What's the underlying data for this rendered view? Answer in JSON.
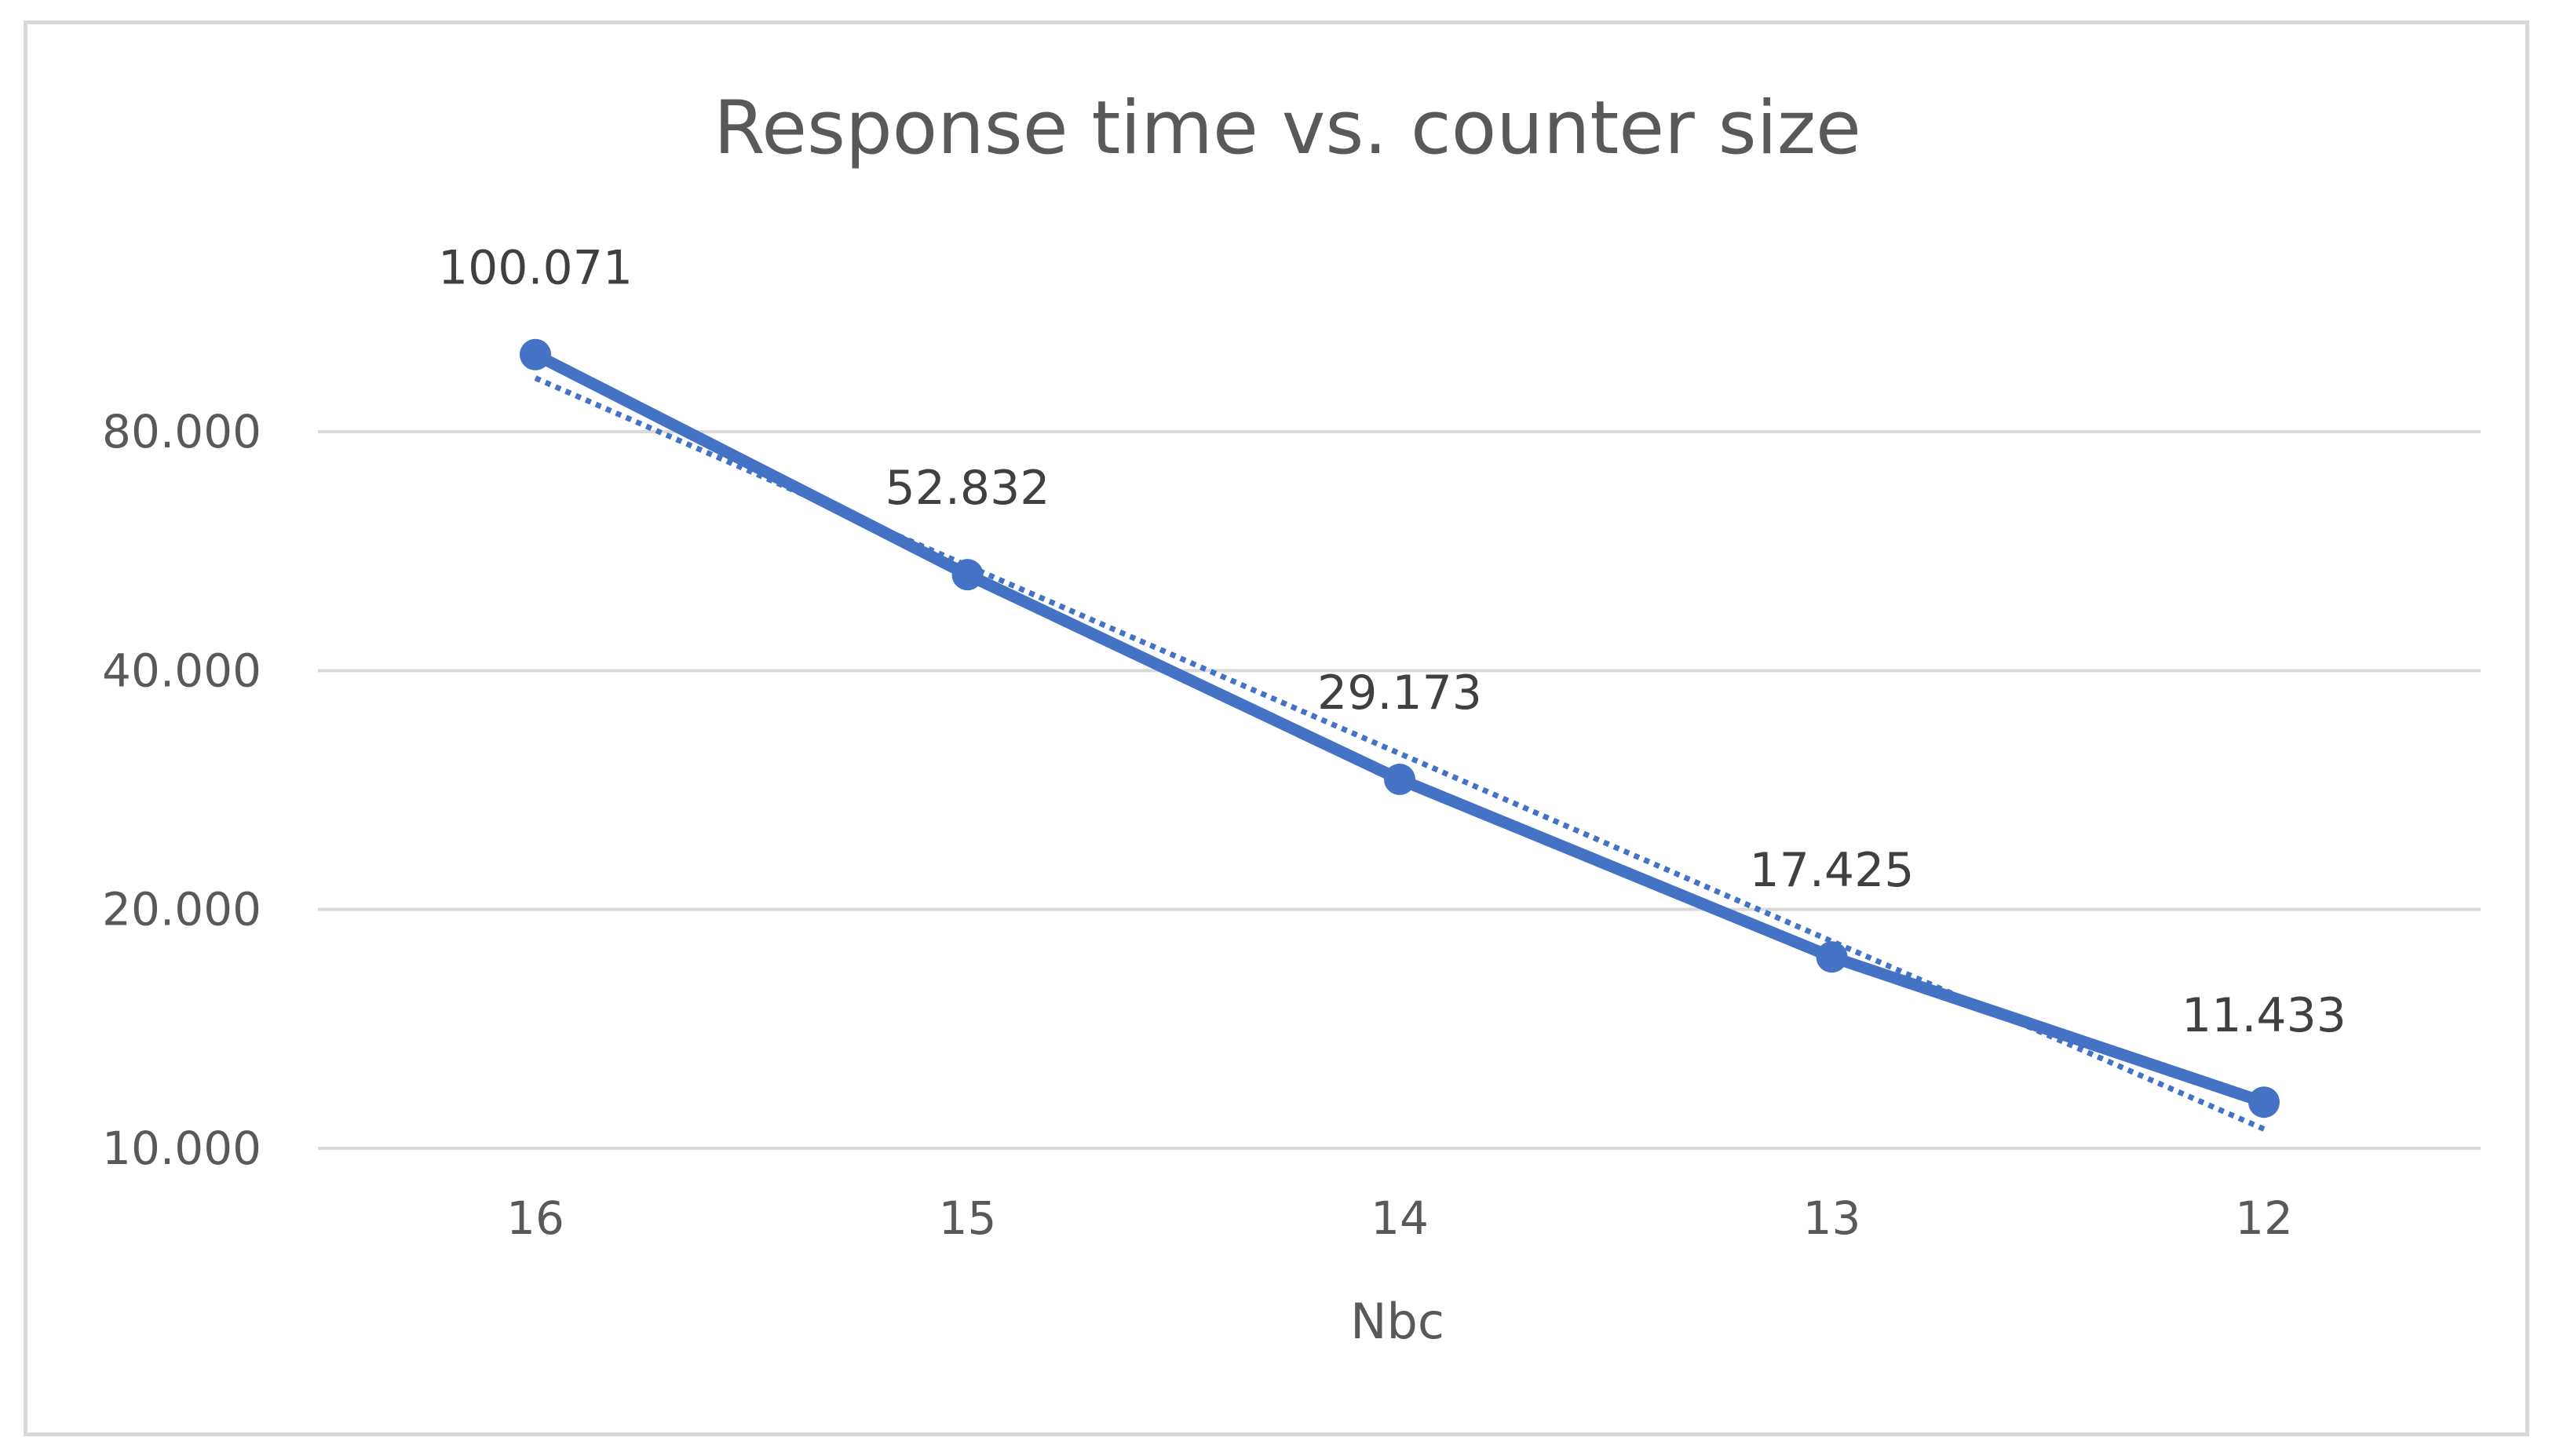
{
  "chart_data": {
    "type": "line",
    "title": "Response time vs. counter size",
    "xlabel": "Nbc",
    "ylabel": "",
    "categories": [
      "16",
      "15",
      "14",
      "13",
      "12"
    ],
    "series": [
      {
        "values": [
          100.071,
          52.832,
          29.173,
          17.425,
          11.433
        ],
        "data_labels": [
          "100.071",
          "52.832",
          "29.173",
          "17.425",
          "11.433"
        ],
        "color": "#4472c4",
        "marker": "circle"
      }
    ],
    "trendline": {
      "type": "exponential",
      "style": "dotted",
      "color": "#4472c4"
    },
    "yscale": "log",
    "ylim": [
      10,
      100
    ],
    "yticks": [
      10,
      20,
      40,
      80
    ],
    "ytick_labels": [
      "10.000",
      "20.000",
      "40.000",
      "80.000"
    ],
    "grid": true,
    "legend": "none"
  }
}
